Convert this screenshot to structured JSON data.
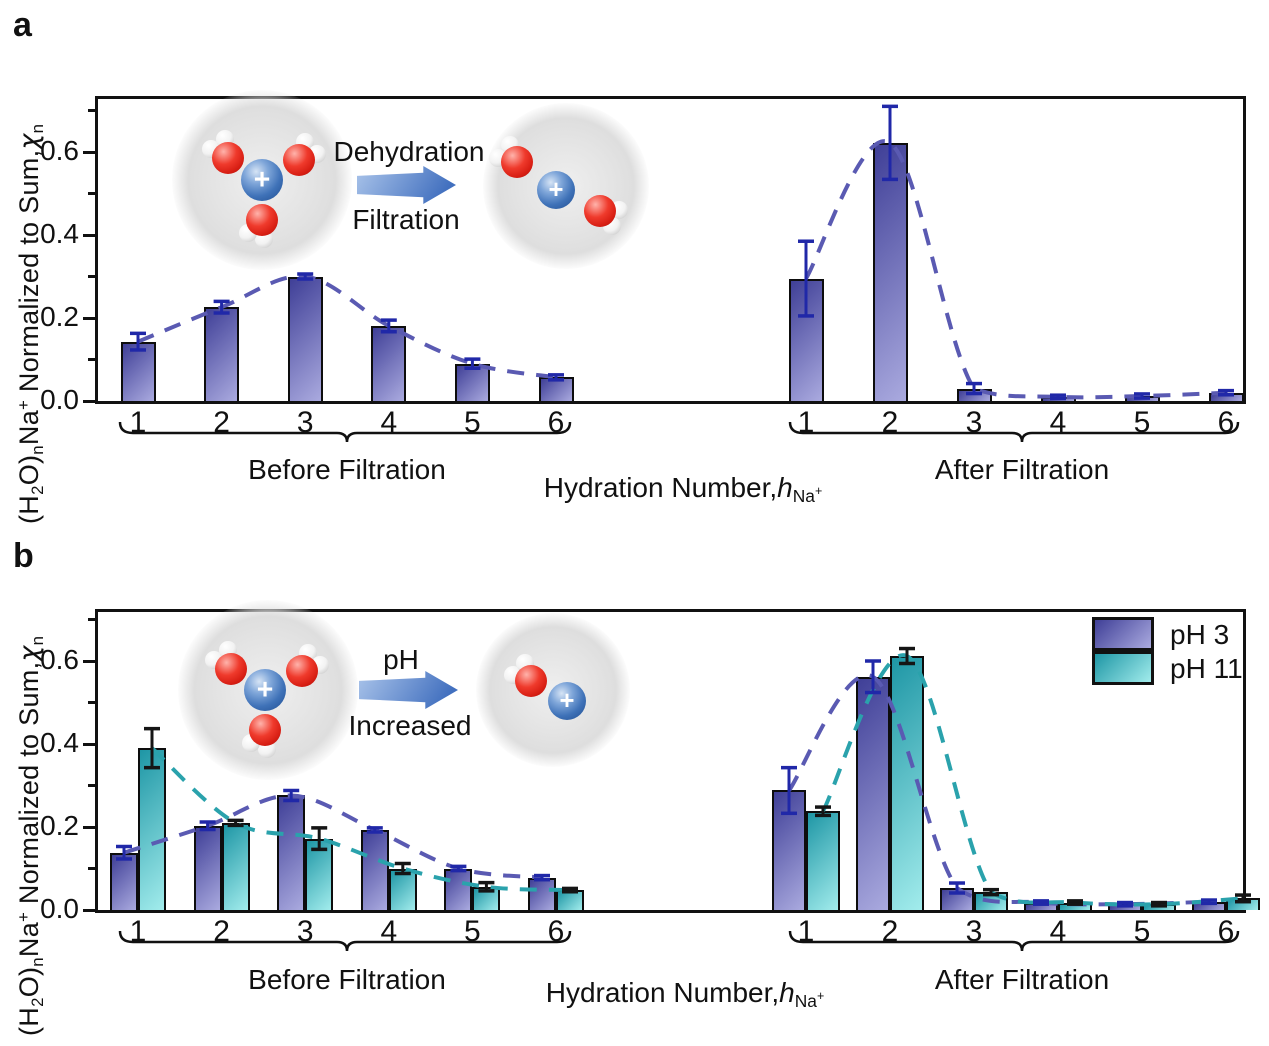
{
  "figure": {
    "panel_a_label": "a",
    "panel_b_label": "b",
    "y_axis_title": {
      "p1": "(H",
      "s1": "2",
      "p2": "O)",
      "s2": "n",
      "p3": "Na",
      "sup1": "+",
      "p4": " Normalized to Sum,",
      "chi": "χ",
      "s3": "n"
    },
    "x_axis_label": {
      "main": "Hydration Number,",
      "h": "h",
      "sub": "Na",
      "subsup": "+"
    },
    "y_tick_labels": [
      "0.0",
      "0.2",
      "0.4",
      "0.6"
    ],
    "y_tick_values": [
      0,
      0.2,
      0.4,
      0.6
    ],
    "y_minor_tick_values": [
      0.1,
      0.3,
      0.5,
      0.7
    ]
  },
  "insets": {
    "a": {
      "top_label": "Dehydration",
      "bottom_label": "Filtration",
      "ion_symbol": "+",
      "waters_before": 3,
      "waters_after": 2
    },
    "b": {
      "top_label": "pH",
      "bottom_label": "Increased",
      "ion_symbol": "+",
      "waters_before": 3,
      "waters_after": 1
    }
  },
  "legend": {
    "items": [
      {
        "label": "pH 3",
        "series": "purple"
      },
      {
        "label": "pH 11",
        "series": "teal"
      }
    ]
  },
  "colors": {
    "bar_purple_dark": "#3f3f97",
    "bar_purple_light": "#aaaadf",
    "bar_teal_dark": "#1e96a5",
    "bar_teal_light": "#a2ecec",
    "line_purple": "#5a5ab2",
    "line_teal": "#2aa2ac",
    "error_blue": "#2028a8",
    "error_black": "#151515",
    "axis": "#111111",
    "arrow_light": "#aac4ea",
    "arrow_dark": "#4270bf",
    "ion_blue": "#3f72b8",
    "oxygen_red": "#d81f14",
    "hydrogen_white": "#f2f2f2",
    "shell_gray": "#dedede"
  },
  "chart_data": [
    {
      "panel": "a",
      "type": "bar",
      "title": "",
      "ylabel": "(H2O)n Na+ Normalized to Sum, χn",
      "xlabel": "Hydration Number, h(Na+)",
      "ylim": [
        0,
        0.74
      ],
      "yticks": [
        0,
        0.2,
        0.4,
        0.6
      ],
      "grid": false,
      "legend_position": "none",
      "groups": [
        {
          "label": "Before Filtration",
          "categories": [
            "1",
            "2",
            "3",
            "4",
            "5",
            "6"
          ],
          "series": [
            {
              "name": "(H2O)nNa+",
              "color": "purple",
              "values": [
                0.143,
                0.226,
                0.3,
                0.181,
                0.09,
                0.057
              ],
              "errors": [
                0.02,
                0.014,
                0.006,
                0.014,
                0.011,
                0.006
              ]
            }
          ]
        },
        {
          "label": "After Filtration",
          "categories": [
            "1",
            "2",
            "3",
            "4",
            "5",
            "6"
          ],
          "series": [
            {
              "name": "(H2O)nNa+",
              "color": "purple",
              "values": [
                0.295,
                0.622,
                0.03,
                0.01,
                0.012,
                0.02
              ],
              "errors": [
                0.09,
                0.088,
                0.012,
                0.004,
                0.005,
                0.005
              ]
            }
          ]
        }
      ]
    },
    {
      "panel": "b",
      "type": "bar",
      "title": "",
      "ylabel": "(H2O)n Na+ Normalized to Sum, χn",
      "xlabel": "Hydration Number, h(Na+)",
      "ylim": [
        0,
        0.73
      ],
      "yticks": [
        0,
        0.2,
        0.4,
        0.6
      ],
      "grid": false,
      "legend_position": "top-right",
      "groups": [
        {
          "label": "Before Filtration",
          "categories": [
            "1",
            "2",
            "3",
            "4",
            "5",
            "6"
          ],
          "series": [
            {
              "name": "pH 3",
              "color": "purple",
              "values": [
                0.138,
                0.203,
                0.276,
                0.193,
                0.1,
                0.078
              ],
              "errors": [
                0.015,
                0.009,
                0.012,
                0.005,
                0.005,
                0.005
              ]
            },
            {
              "name": "pH 11",
              "color": "teal",
              "values": [
                0.39,
                0.21,
                0.172,
                0.1,
                0.056,
                0.048
              ],
              "errors": [
                0.047,
                0.006,
                0.026,
                0.012,
                0.01,
                0.004
              ]
            }
          ]
        },
        {
          "label": "After Filtration",
          "categories": [
            "1",
            "2",
            "3",
            "4",
            "5",
            "6"
          ],
          "series": [
            {
              "name": "pH 3",
              "color": "purple",
              "values": [
                0.288,
                0.562,
                0.053,
                0.018,
                0.014,
                0.02
              ],
              "errors": [
                0.055,
                0.038,
                0.012,
                0.004,
                0.004,
                0.004
              ]
            },
            {
              "name": "pH 11",
              "color": "teal",
              "values": [
                0.238,
                0.612,
                0.043,
                0.018,
                0.014,
                0.028
              ],
              "errors": [
                0.01,
                0.018,
                0.006,
                0.004,
                0.004,
                0.008
              ]
            }
          ]
        }
      ]
    }
  ]
}
